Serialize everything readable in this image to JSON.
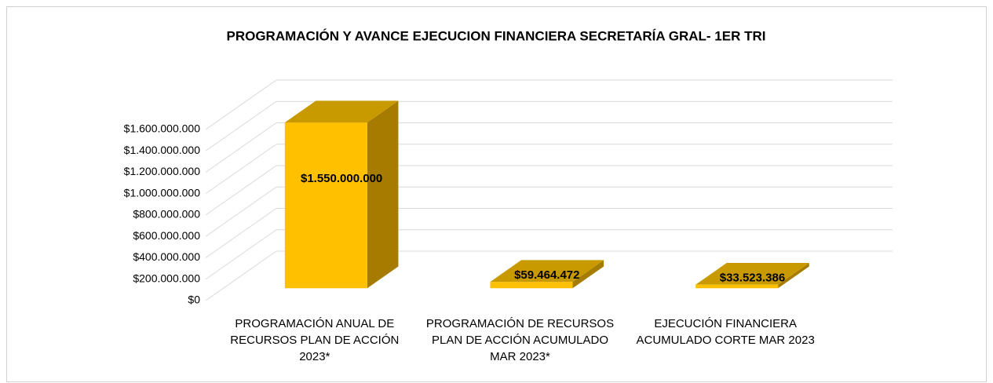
{
  "chart_data": {
    "type": "bar3d",
    "title": "PROGRAMACIÓN Y AVANCE EJECUCION FINANCIERA SECRETARÍA GRAL- 1ER TRI",
    "categories": [
      "PROGRAMACIÓN ANUAL DE RECURSOS PLAN DE ACCIÓN 2023*",
      "PROGRAMACIÓN DE RECURSOS PLAN DE ACCIÓN ACUMULADO MAR 2023*",
      "EJECUCIÓN FINANCIERA ACUMULADO CORTE MAR 2023"
    ],
    "values": [
      1550000000,
      59464472,
      33523386
    ],
    "value_labels": [
      "$1.550.000.000",
      "$59.464.472",
      "$33.523.386"
    ],
    "color": "#ffc000",
    "ylim": [
      0,
      1600000000
    ],
    "yticks": [
      {
        "value": 0,
        "label": "$0"
      },
      {
        "value": 200000000,
        "label": "$200.000.000"
      },
      {
        "value": 400000000,
        "label": "$400.000.000"
      },
      {
        "value": 600000000,
        "label": "$600.000.000"
      },
      {
        "value": 800000000,
        "label": "$800.000.000"
      },
      {
        "value": 1000000000,
        "label": "$1.000.000.000"
      },
      {
        "value": 1200000000,
        "label": "$1.200.000.000"
      },
      {
        "value": 1400000000,
        "label": "$1.400.000.000"
      },
      {
        "value": 1600000000,
        "label": "$1.600.000.000"
      }
    ],
    "grid": true
  }
}
